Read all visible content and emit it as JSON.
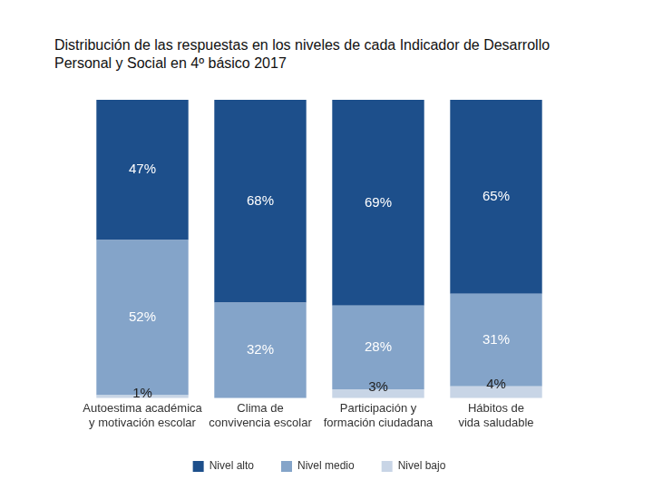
{
  "chart_data": {
    "type": "bar",
    "title": "Distribución de las respuestas en los niveles de cada Indicador de Desarrollo Personal y Social en 4º básico 2017",
    "categories": [
      [
        "Autoestima académica",
        "y motivación escolar"
      ],
      [
        "Clima de",
        "convivencia escolar"
      ],
      [
        "Participación y",
        "formación ciudadana"
      ],
      [
        "Hábitos de",
        "vida saludable"
      ]
    ],
    "series": [
      {
        "name": "Nivel alto",
        "color": "#1d4f8b",
        "values": [
          47,
          68,
          69,
          65
        ],
        "value_labels": [
          "47%",
          "68%",
          "69%",
          "65%"
        ]
      },
      {
        "name": "Nivel medio",
        "color": "#84a4c9",
        "values": [
          52,
          32,
          28,
          31
        ],
        "value_labels": [
          "52%",
          "32%",
          "28%",
          "31%"
        ]
      },
      {
        "name": "Nivel bajo",
        "color": "#c8d5e6",
        "values": [
          1,
          null,
          3,
          4
        ],
        "value_labels": [
          "1%",
          null,
          "3%",
          "4%"
        ]
      }
    ],
    "ylim": [
      0,
      100
    ],
    "stacked": true,
    "data_labels": true,
    "legend": "bottom",
    "grid": false,
    "tick_labels": "x"
  }
}
